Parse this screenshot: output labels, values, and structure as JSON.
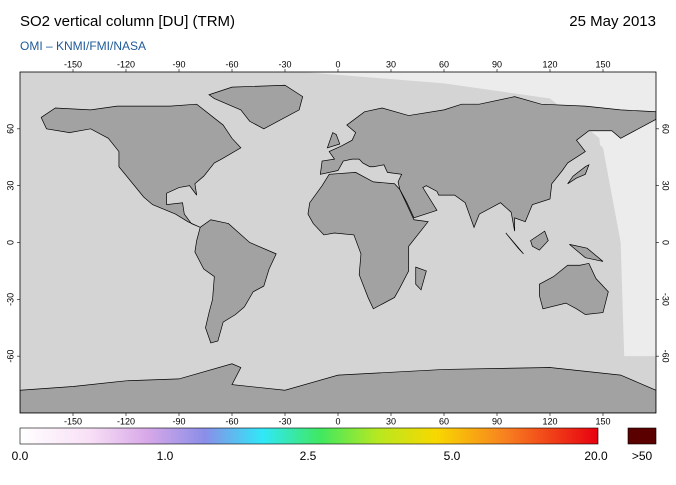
{
  "header": {
    "title": "SO2 vertical column [DU] (TRM)",
    "date": "25 May 2013",
    "credit": "OMI  –  KNMI/FMI/NASA"
  },
  "map": {
    "lon_ticks": [
      -150,
      -120,
      -90,
      -60,
      -30,
      0,
      30,
      60,
      90,
      120,
      150
    ],
    "lat_ticks": [
      60,
      30,
      0,
      -30,
      -60
    ]
  },
  "colorbar": {
    "labels": [
      "0.0",
      "1.0",
      "2.5",
      "5.0",
      "20.0",
      ">50"
    ]
  }
}
